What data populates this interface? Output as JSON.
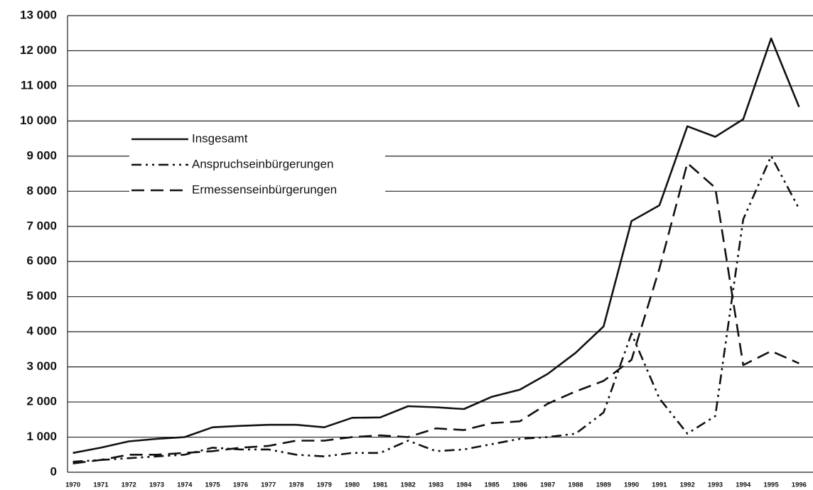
{
  "chart_data": {
    "type": "line",
    "categories": [
      "1970",
      "1971",
      "1972",
      "1973",
      "1974",
      "1975",
      "1976",
      "1977",
      "1978",
      "1979",
      "1980",
      "1981",
      "1982",
      "1983",
      "1984",
      "1985",
      "1986",
      "1987",
      "1988",
      "1989",
      "1990",
      "1991",
      "1992",
      "1993",
      "1994",
      "1995",
      "1996"
    ],
    "series": [
      {
        "name": "Insgesamt",
        "color": "#111111",
        "style": "solid",
        "values": [
          550,
          700,
          880,
          950,
          1000,
          1280,
          1320,
          1350,
          1350,
          1280,
          1550,
          1560,
          1880,
          1850,
          1800,
          2150,
          2350,
          2800,
          3400,
          4150,
          7150,
          7600,
          9850,
          9550,
          10050,
          12350,
          10400
        ]
      },
      {
        "name": "Anspruchseinbürgerungen",
        "color": "#111111",
        "style": "dashdot",
        "values": [
          300,
          350,
          400,
          450,
          500,
          700,
          650,
          650,
          500,
          450,
          550,
          550,
          900,
          600,
          650,
          800,
          950,
          1000,
          1100,
          1700,
          3950,
          2100,
          1100,
          1600,
          7200,
          9000,
          7500
        ]
      },
      {
        "name": "Ermessenseinbürgerungen",
        "color": "#111111",
        "style": "dashed",
        "values": [
          250,
          350,
          500,
          500,
          550,
          600,
          700,
          750,
          900,
          900,
          1000,
          1050,
          1000,
          1250,
          1200,
          1400,
          1450,
          1950,
          2300,
          2600,
          3200,
          5800,
          8800,
          8100,
          3050,
          3450,
          3100
        ]
      }
    ],
    "ylim": [
      0,
      13000
    ],
    "yticks": [
      0,
      {
        "value": 1000,
        "label": "1 000"
      },
      {
        "value": 2000,
        "label": "2 000"
      },
      {
        "value": 3000,
        "label": "3 000"
      },
      {
        "value": 4000,
        "label": "4 000"
      },
      {
        "value": 5000,
        "label": "5 000"
      },
      {
        "value": 6000,
        "label": "6 000"
      },
      {
        "value": 7000,
        "label": "7 000"
      },
      {
        "value": 8000,
        "label": "8 000"
      },
      {
        "value": 9000,
        "label": "9 000"
      },
      {
        "value": 10000,
        "label": "10 000"
      },
      {
        "value": 11000,
        "label": "11 000"
      },
      {
        "value": 12000,
        "label": "12 000"
      },
      {
        "value": 13000,
        "label": "13 000"
      }
    ],
    "grid": true,
    "legend": "upper left"
  }
}
